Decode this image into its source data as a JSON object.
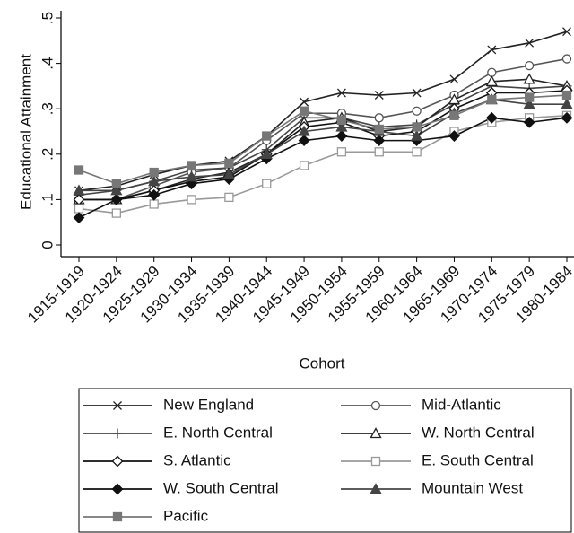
{
  "chart_data": {
    "type": "line",
    "x_label": "Cohort",
    "y_label": "Educational Attainment",
    "categories": [
      "1915-1919",
      "1920-1924",
      "1925-1929",
      "1930-1934",
      "1935-1939",
      "1940-1944",
      "1945-1949",
      "1950-1954",
      "1955-1959",
      "1960-1964",
      "1965-1969",
      "1970-1974",
      "1975-1979",
      "1980-1984"
    ],
    "ylim": [
      0,
      0.5
    ],
    "yticks": [
      0,
      {
        "value": 0.1,
        "label": ".1"
      },
      {
        "value": 0.2,
        "label": ".2"
      },
      {
        "value": 0.3,
        "label": ".3"
      },
      {
        "value": 0.4,
        "label": ".4"
      },
      {
        "value": 0.5,
        "label": ".5"
      }
    ],
    "grid": false,
    "legend": true,
    "series": [
      {
        "name": "New England",
        "color": "#222222",
        "marker": "x",
        "filled": false,
        "values": [
          0.12,
          0.13,
          0.155,
          0.175,
          0.185,
          0.24,
          0.315,
          0.335,
          0.33,
          0.335,
          0.365,
          0.43,
          0.445,
          0.47
        ]
      },
      {
        "name": "Mid-Atlantic",
        "color": "#555555",
        "marker": "circle",
        "filled": false,
        "values": [
          0.1,
          0.1,
          0.13,
          0.16,
          0.17,
          0.23,
          0.29,
          0.29,
          0.28,
          0.295,
          0.33,
          0.38,
          0.395,
          0.41
        ]
      },
      {
        "name": "E. North Central",
        "color": "#444444",
        "marker": "plus",
        "filled": false,
        "values": [
          0.11,
          0.12,
          0.14,
          0.165,
          0.17,
          0.21,
          0.28,
          0.28,
          0.26,
          0.265,
          0.31,
          0.35,
          0.345,
          0.35
        ]
      },
      {
        "name": "W. North Central",
        "color": "#222222",
        "marker": "triangle",
        "filled": false,
        "values": [
          0.1,
          0.1,
          0.12,
          0.145,
          0.16,
          0.2,
          0.27,
          0.28,
          0.25,
          0.26,
          0.32,
          0.36,
          0.365,
          0.35
        ]
      },
      {
        "name": "S. Atlantic",
        "color": "#111111",
        "marker": "diamond",
        "filled": false,
        "values": [
          0.1,
          0.1,
          0.12,
          0.14,
          0.15,
          0.2,
          0.26,
          0.27,
          0.24,
          0.25,
          0.3,
          0.335,
          0.335,
          0.34
        ]
      },
      {
        "name": "E. South Central",
        "color": "#999999",
        "marker": "square",
        "filled": false,
        "values": [
          0.08,
          0.07,
          0.09,
          0.1,
          0.105,
          0.135,
          0.175,
          0.205,
          0.205,
          0.205,
          0.25,
          0.27,
          0.28,
          0.285
        ]
      },
      {
        "name": "W. South Central",
        "color": "#111111",
        "marker": "diamond",
        "filled": true,
        "values": [
          0.06,
          0.1,
          0.11,
          0.135,
          0.145,
          0.19,
          0.23,
          0.24,
          0.23,
          0.23,
          0.24,
          0.28,
          0.27,
          0.28
        ]
      },
      {
        "name": "Mountain West",
        "color": "#444444",
        "marker": "triangle",
        "filled": true,
        "values": [
          0.12,
          0.12,
          0.14,
          0.15,
          0.155,
          0.2,
          0.25,
          0.26,
          0.25,
          0.24,
          0.29,
          0.32,
          0.31,
          0.31
        ]
      },
      {
        "name": "Pacific",
        "color": "#777777",
        "marker": "square",
        "filled": true,
        "values": [
          0.165,
          0.135,
          0.16,
          0.175,
          0.18,
          0.24,
          0.295,
          0.275,
          0.255,
          0.26,
          0.285,
          0.32,
          0.325,
          0.33
        ]
      }
    ]
  }
}
